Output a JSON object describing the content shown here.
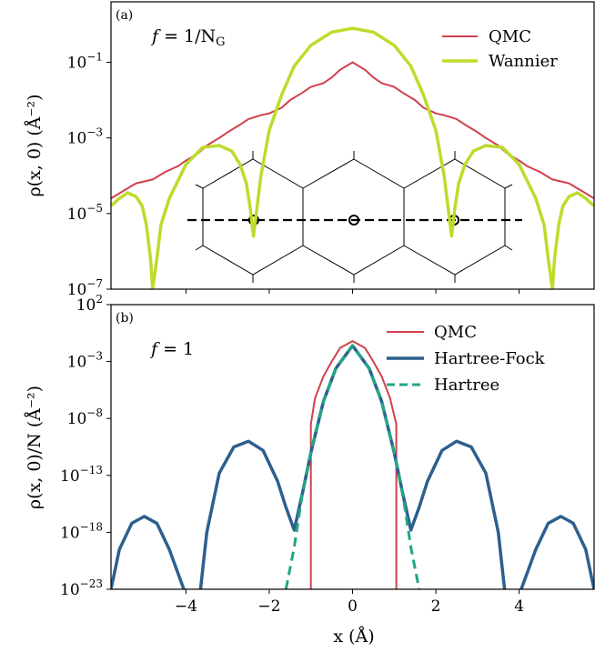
{
  "chart_data": [
    {
      "type": "line",
      "panel_label": "(a)",
      "annotation": "f = 1/N_G",
      "annotation_parts": {
        "lhs": "f",
        "rhs": "= 1/N",
        "sub": "G"
      },
      "ylabel": "ρ(x, 0)  (Å⁻²)",
      "yscale": "log",
      "ylim_exp": [
        -7,
        0.6
      ],
      "xlim": [
        -5.8,
        5.8
      ],
      "yticks": [
        {
          "exp": -1,
          "base": "10",
          "sup": "−1"
        },
        {
          "exp": -3,
          "base": "10",
          "sup": "−3"
        },
        {
          "exp": -5,
          "base": "10",
          "sup": "−5"
        },
        {
          "exp": -7,
          "base": "10",
          "sup": "−7"
        }
      ],
      "legend": {
        "position": "top-right",
        "entries": [
          "QMC",
          "Wannier"
        ]
      },
      "series": [
        {
          "name": "QMC",
          "color": "#d0404e",
          "style": "solid",
          "x": [
            -5.8,
            -5.5,
            -5.2,
            -5.0,
            -4.8,
            -4.5,
            -4.2,
            -4.0,
            -3.7,
            -3.5,
            -3.2,
            -3.0,
            -2.7,
            -2.5,
            -2.2,
            -2.0,
            -1.7,
            -1.5,
            -1.2,
            -1.0,
            -0.7,
            -0.5,
            -0.3,
            0.0,
            0.3,
            0.5,
            0.7,
            1.0,
            1.2,
            1.5,
            1.7,
            2.0,
            2.2,
            2.5,
            2.7,
            3.0,
            3.2,
            3.5,
            3.7,
            4.0,
            4.2,
            4.5,
            4.8,
            5.0,
            5.2,
            5.5,
            5.8
          ],
          "y_log10": [
            -4.6,
            -4.4,
            -4.2,
            -4.15,
            -4.1,
            -3.9,
            -3.75,
            -3.6,
            -3.4,
            -3.2,
            -3.0,
            -2.85,
            -2.65,
            -2.5,
            -2.4,
            -2.35,
            -2.2,
            -2.0,
            -1.8,
            -1.65,
            -1.55,
            -1.4,
            -1.2,
            -1.0,
            -1.2,
            -1.4,
            -1.55,
            -1.65,
            -1.8,
            -2.0,
            -2.2,
            -2.35,
            -2.4,
            -2.5,
            -2.65,
            -2.85,
            -3.0,
            -3.2,
            -3.4,
            -3.6,
            -3.75,
            -3.9,
            -4.1,
            -4.15,
            -4.2,
            -4.4,
            -4.6
          ]
        },
        {
          "name": "Wannier",
          "color": "#bcdc2c",
          "style": "solid",
          "x": [
            -5.8,
            -5.6,
            -5.4,
            -5.2,
            -5.05,
            -4.95,
            -4.85,
            -4.8,
            -4.7,
            -4.6,
            -4.4,
            -4.0,
            -3.6,
            -3.2,
            -2.9,
            -2.7,
            -2.55,
            -2.45,
            -2.38,
            -2.3,
            -2.2,
            -2.0,
            -1.7,
            -1.4,
            -1.0,
            -0.5,
            0.0,
            0.5,
            1.0,
            1.4,
            1.7,
            2.0,
            2.2,
            2.3,
            2.38,
            2.45,
            2.55,
            2.7,
            2.9,
            3.2,
            3.6,
            4.0,
            4.4,
            4.6,
            4.7,
            4.8,
            4.85,
            4.95,
            5.05,
            5.2,
            5.4,
            5.6,
            5.8
          ],
          "y_log10": [
            -4.8,
            -4.6,
            -4.45,
            -4.55,
            -4.8,
            -5.3,
            -6.2,
            -7.0,
            -6.2,
            -5.3,
            -4.6,
            -3.7,
            -3.25,
            -3.2,
            -3.35,
            -3.7,
            -4.2,
            -4.9,
            -5.6,
            -4.9,
            -4.0,
            -2.8,
            -1.85,
            -1.1,
            -0.55,
            -0.2,
            -0.1,
            -0.2,
            -0.55,
            -1.1,
            -1.85,
            -2.8,
            -4.0,
            -4.9,
            -5.6,
            -4.9,
            -4.2,
            -3.7,
            -3.35,
            -3.2,
            -3.25,
            -3.7,
            -4.6,
            -5.3,
            -6.2,
            -7.0,
            -6.2,
            -5.3,
            -4.8,
            -4.55,
            -4.45,
            -4.6,
            -4.8
          ]
        }
      ]
    },
    {
      "type": "line",
      "panel_label": "(b)",
      "annotation": "f = 1",
      "annotation_parts": {
        "lhs": "f",
        "rhs": "= 1"
      },
      "ylabel": "ρ(x, 0)/N  (Å⁻²)",
      "xlabel": "x (Å)",
      "yscale": "log",
      "ylim_exp": [
        -23,
        2
      ],
      "xlim": [
        -5.8,
        5.8
      ],
      "yticks": [
        {
          "exp": 2,
          "base": "10",
          "sup": "2"
        },
        {
          "exp": -3,
          "base": "10",
          "sup": "−3"
        },
        {
          "exp": -8,
          "base": "10",
          "sup": "−8"
        },
        {
          "exp": -13,
          "base": "10",
          "sup": "−13"
        },
        {
          "exp": -18,
          "base": "10",
          "sup": "−18"
        },
        {
          "exp": -23,
          "base": "10",
          "sup": "−23"
        }
      ],
      "xticks": [
        {
          "value": -4,
          "label": "−4"
        },
        {
          "value": -2,
          "label": "−2"
        },
        {
          "value": 0,
          "label": "0"
        },
        {
          "value": 2,
          "label": "2"
        },
        {
          "value": 4,
          "label": "4"
        }
      ],
      "legend": {
        "position": "top-right",
        "entries": [
          "QMC",
          "Hartree-Fock",
          "Hartree"
        ]
      },
      "series": [
        {
          "name": "QMC",
          "color": "#d0404e",
          "style": "solid",
          "x": [
            -1.0,
            -1.0,
            -0.9,
            -0.7,
            -0.5,
            -0.3,
            0.0,
            0.3,
            0.5,
            0.7,
            0.9,
            1.05,
            1.05
          ],
          "y_log10": [
            -23,
            -8.5,
            -6.2,
            -4.3,
            -3.0,
            -1.8,
            -1.2,
            -1.8,
            -3.0,
            -4.3,
            -6.2,
            -8.5,
            -23
          ]
        },
        {
          "name": "Hartree-Fock",
          "color": "#2d5f8e",
          "style": "solid",
          "segments": [
            {
              "x": [
                -5.8,
                -5.6,
                -5.3,
                -5.0,
                -4.7,
                -4.4,
                -4.2,
                -4.05
              ],
              "y_log10": [
                -23,
                -19.5,
                -17.2,
                -16.6,
                -17.2,
                -19.5,
                -21.5,
                -23
              ]
            },
            {
              "x": [
                -3.65,
                -3.5,
                -3.2,
                -2.85,
                -2.5,
                -2.15,
                -1.8,
                -1.6,
                -1.4,
                -1.2,
                -1.0,
                -0.7,
                -0.4,
                0.0,
                0.4,
                0.7,
                1.0,
                1.2,
                1.4,
                1.6,
                1.8,
                2.15,
                2.5,
                2.85,
                3.2,
                3.5,
                3.65
              ],
              "y_log10": [
                -23,
                -18.0,
                -12.8,
                -10.5,
                -10.0,
                -10.8,
                -13.5,
                -15.8,
                -17.8,
                -14.5,
                -11.0,
                -6.5,
                -3.6,
                -1.6,
                -3.6,
                -6.5,
                -11.0,
                -14.5,
                -17.8,
                -15.8,
                -13.5,
                -10.8,
                -10.0,
                -10.5,
                -12.8,
                -18.0,
                -23
              ]
            },
            {
              "x": [
                4.05,
                4.2,
                4.4,
                4.7,
                5.0,
                5.3,
                5.6,
                5.8
              ],
              "y_log10": [
                -23,
                -21.5,
                -19.5,
                -17.2,
                -16.6,
                -17.2,
                -19.5,
                -23
              ]
            }
          ]
        },
        {
          "name": "Hartree",
          "color": "#1fa786",
          "style": "dashed",
          "x": [
            -1.6,
            -1.4,
            -1.2,
            -1.0,
            -0.7,
            -0.4,
            0.0,
            0.4,
            0.7,
            1.0,
            1.2,
            1.4,
            1.6
          ],
          "y_log10": [
            -23,
            -19.3,
            -14.5,
            -11.0,
            -6.5,
            -3.6,
            -1.6,
            -3.6,
            -6.5,
            -11.0,
            -14.5,
            -19.3,
            -23
          ]
        }
      ]
    }
  ]
}
